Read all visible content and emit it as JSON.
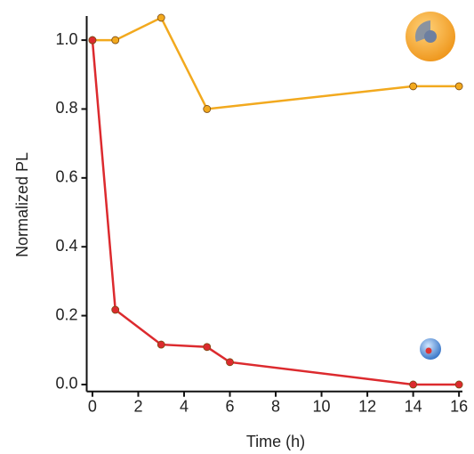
{
  "chart_data": {
    "type": "line",
    "xlabel": "Time (h)",
    "ylabel": "Normalized PL",
    "series": [
      {
        "color": "#f2a91e",
        "x": [
          0,
          1,
          3,
          5,
          14,
          16
        ],
        "values": [
          1.0,
          1.0,
          1.065,
          0.8,
          0.866,
          0.866
        ]
      },
      {
        "color": "#dc2a2e",
        "x": [
          0,
          1,
          3,
          5,
          6,
          14,
          16
        ],
        "values": [
          1.0,
          0.217,
          0.116,
          0.109,
          0.065,
          0.0,
          0.0
        ]
      }
    ],
    "xlim": [
      -0.25,
      16.15
    ],
    "ylim": [
      -0.02,
      1.07
    ],
    "xticks": [
      0,
      2,
      4,
      6,
      8,
      10,
      12,
      14,
      16
    ],
    "yticks": [
      {
        "value": 0,
        "label": "0.0"
      },
      0.2,
      0.4,
      0.6,
      0.8,
      {
        "value": 1,
        "label": "1.0"
      }
    ]
  }
}
